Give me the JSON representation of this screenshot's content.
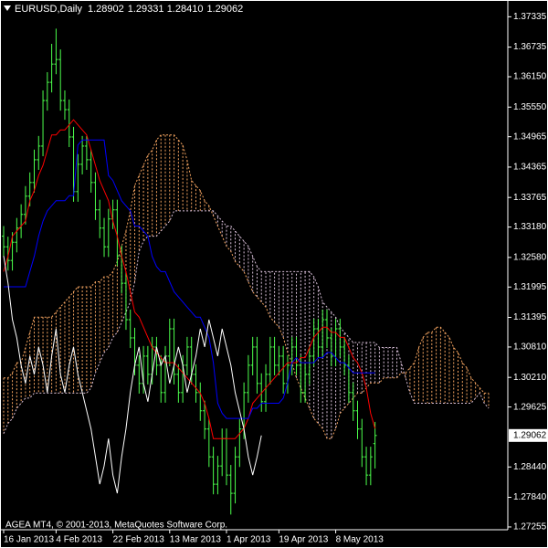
{
  "chart_data": {
    "type": "ohlc",
    "title": "EURUSD,Daily",
    "header_values": [
      "1.28902",
      "1.29331",
      "1.28410",
      "1.29062"
    ],
    "footer": "AGEA MT4, © 2001-2013, MetaQuotes Software Corp.",
    "color": "#4cff4c",
    "ylim": [
      1.272,
      1.3763
    ],
    "yticks": [
      1.37335,
      1.36735,
      {
        "value": 1.3615,
        "label": "1.36150"
      },
      {
        "value": 1.3555,
        "label": "1.35550"
      },
      1.34965,
      1.34365,
      1.33765,
      {
        "value": 1.3318,
        "label": "1.33180"
      },
      {
        "value": 1.3258,
        "label": "1.32580"
      },
      1.31995,
      1.31395,
      {
        "value": 1.3081,
        "label": "1.30810"
      },
      {
        "value": 1.3021,
        "label": "1.30210"
      },
      1.29625,
      {
        "value": 1.2844,
        "label": "1.28440"
      },
      {
        "value": 1.2784,
        "label": "1.27840"
      },
      1.27255
    ],
    "categories": [
      "16 Jan 2013",
      null,
      null,
      null,
      null,
      null,
      null,
      null,
      null,
      null,
      null,
      null,
      "4 Feb 2013",
      null,
      null,
      null,
      null,
      null,
      null,
      null,
      null,
      null,
      null,
      null,
      null,
      "22 Feb 2013",
      null,
      null,
      null,
      null,
      null,
      null,
      null,
      null,
      null,
      null,
      null,
      null,
      "13 Mar 2013",
      null,
      null,
      null,
      null,
      null,
      null,
      null,
      null,
      null,
      null,
      null,
      null,
      "1 Apr 2013",
      null,
      null,
      null,
      null,
      null,
      null,
      null,
      null,
      null,
      null,
      null,
      "19 Apr 2013",
      null,
      null,
      null,
      null,
      null,
      null,
      null,
      null,
      null,
      null,
      null,
      null,
      "8 May 2013",
      null,
      null,
      null,
      null,
      null,
      null,
      null,
      null,
      null,
      null,
      null,
      null,
      null,
      null,
      null,
      null,
      null,
      null,
      null,
      null,
      null,
      null,
      null,
      null,
      null,
      null,
      null,
      null,
      null,
      null,
      null,
      null,
      null,
      null,
      null
    ],
    "open": [
      1.33,
      1.3279,
      1.3252,
      1.3288,
      1.3316,
      1.3343,
      1.3379,
      1.3406,
      1.3451,
      1.3478,
      1.3568,
      1.3604,
      1.364,
      1.3649,
      1.3568,
      1.355,
      1.3496,
      1.3388,
      1.3442,
      1.3478,
      1.3451,
      1.3406,
      1.3352,
      1.3316,
      1.3279,
      1.3334,
      1.3352,
      1.3261,
      1.3207,
      1.3135,
      1.3099,
      1.3045,
      1.3009,
      1.3063,
      1.3027,
      1.3081,
      1.3045,
      1.2991,
      1.3063,
      1.3117,
      1.3027,
      1.2991,
      1.3045,
      1.3081,
      1.3027,
      1.2991,
      1.2955,
      1.2919,
      1.2864,
      1.281,
      1.2846,
      1.29,
      1.2828,
      1.2792,
      1.2864,
      1.2919,
      1.2991,
      1.3045,
      1.3081,
      1.3009,
      1.2973,
      1.3027,
      1.3081,
      1.3045,
      1.3063,
      1.3009,
      1.3045,
      1.3081,
      1.3045,
      1.2991,
      1.3027,
      1.3063,
      1.3117,
      1.3081,
      1.3135,
      1.3099,
      1.3063,
      1.3117,
      1.3081,
      1.3045,
      1.2991,
      1.2955,
      1.2919,
      1.2864,
      1.2828,
      1.28902,
      null,
      null,
      null,
      null,
      null,
      null,
      null,
      null,
      null,
      null,
      null,
      null,
      null,
      null,
      null,
      null,
      null,
      null,
      null,
      null,
      null,
      null,
      null,
      null,
      null,
      null
    ],
    "high": [
      1.332,
      1.3299,
      1.3308,
      1.3336,
      1.3363,
      1.3399,
      1.3426,
      1.3471,
      1.3498,
      1.3588,
      1.3624,
      1.368,
      1.371,
      1.3669,
      1.3588,
      1.357,
      1.3516,
      1.3462,
      1.3498,
      1.3498,
      1.3471,
      1.3426,
      1.3372,
      1.3336,
      1.3354,
      1.3372,
      1.3372,
      1.3281,
      1.3227,
      1.3155,
      1.3119,
      1.3065,
      1.3083,
      1.3083,
      1.3101,
      1.3101,
      1.3065,
      1.3083,
      1.3137,
      1.3137,
      1.3047,
      1.3065,
      1.3101,
      1.3101,
      1.3047,
      1.3011,
      1.2975,
      1.2939,
      1.2884,
      1.2866,
      1.292,
      1.292,
      1.2848,
      1.2884,
      1.2939,
      1.3011,
      1.3065,
      1.3101,
      1.3101,
      1.3029,
      1.3047,
      1.3101,
      1.3101,
      1.3083,
      1.3083,
      1.3065,
      1.3101,
      1.3101,
      1.3065,
      1.3047,
      1.3083,
      1.3137,
      1.3137,
      1.3155,
      1.3155,
      1.3119,
      1.3137,
      1.3137,
      1.3101,
      1.3065,
      1.3011,
      1.2975,
      1.2939,
      1.2884,
      1.2884,
      1.29331,
      null,
      null,
      null,
      null,
      null,
      null,
      null,
      null,
      null,
      null,
      null,
      null,
      null,
      null,
      null,
      null,
      null,
      null,
      null,
      null,
      null,
      null,
      null,
      null,
      null,
      null
    ],
    "low": [
      1.3259,
      1.3232,
      1.3232,
      1.3268,
      1.3296,
      1.3323,
      1.3359,
      1.3386,
      1.3431,
      1.3458,
      1.3548,
      1.3584,
      1.362,
      1.3548,
      1.353,
      1.3476,
      1.3368,
      1.3368,
      1.3422,
      1.3431,
      1.3386,
      1.3332,
      1.3296,
      1.3259,
      1.3259,
      1.3314,
      1.3241,
      1.3187,
      1.3115,
      1.3079,
      1.3025,
      1.2989,
      1.2989,
      1.3007,
      1.3007,
      1.3025,
      1.2971,
      1.2971,
      1.3043,
      1.3007,
      1.2971,
      1.2971,
      1.3025,
      1.3007,
      1.2971,
      1.2935,
      1.2899,
      1.2844,
      1.279,
      1.279,
      1.2826,
      1.2808,
      1.275,
      1.2772,
      1.2844,
      1.2899,
      1.2971,
      1.3025,
      1.2989,
      1.2953,
      1.2953,
      1.3007,
      1.3025,
      1.3025,
      1.2989,
      1.2989,
      1.3025,
      1.3025,
      1.2971,
      1.2971,
      1.3007,
      1.3043,
      1.3061,
      1.3061,
      1.3079,
      1.3043,
      1.3043,
      1.3061,
      1.3025,
      1.2971,
      1.2935,
      1.2899,
      1.2844,
      1.2808,
      1.2808,
      1.2841,
      null,
      null,
      null,
      null,
      null,
      null,
      null,
      null,
      null,
      null,
      null,
      null,
      null,
      null,
      null,
      null,
      null,
      null,
      null,
      null,
      null,
      null,
      null,
      null,
      null,
      null
    ],
    "close": [
      1.3279,
      1.3252,
      1.3288,
      1.3316,
      1.3343,
      1.3379,
      1.3406,
      1.3451,
      1.3478,
      1.3568,
      1.3604,
      1.364,
      1.3649,
      1.3568,
      1.355,
      1.3496,
      1.3388,
      1.3442,
      1.3478,
      1.3451,
      1.3406,
      1.3352,
      1.3316,
      1.3279,
      1.3334,
      1.3352,
      1.3261,
      1.3207,
      1.3135,
      1.3099,
      1.3045,
      1.3009,
      1.3063,
      1.3027,
      1.3081,
      1.3045,
      1.2991,
      1.3063,
      1.3117,
      1.3027,
      1.2991,
      1.3045,
      1.3081,
      1.3027,
      1.2991,
      1.2955,
      1.2919,
      1.2864,
      1.281,
      1.2846,
      1.29,
      1.2828,
      1.2792,
      1.2864,
      1.2919,
      1.2991,
      1.3045,
      1.3081,
      1.3009,
      1.2973,
      1.3027,
      1.3081,
      1.3045,
      1.3063,
      1.3009,
      1.3045,
      1.3081,
      1.3045,
      1.2991,
      1.3027,
      1.3063,
      1.3117,
      1.3081,
      1.3135,
      1.3099,
      1.3063,
      1.3117,
      1.3081,
      1.3045,
      1.2991,
      1.2955,
      1.2919,
      1.2864,
      1.2828,
      1.2864,
      1.29062,
      null,
      null,
      null,
      null,
      null,
      null,
      null,
      null,
      null,
      null,
      null,
      null,
      null,
      null,
      null,
      null,
      null,
      null,
      null,
      null,
      null,
      null,
      null,
      null,
      null,
      null
    ],
    "lagging_color": "#ffffff",
    "lines": [
      {
        "color": "#ff0000",
        "values": [
          1.323,
          1.326,
          1.33,
          1.331,
          1.332,
          1.333,
          1.337,
          1.339,
          1.342,
          1.344,
          1.347,
          1.35,
          1.35,
          1.351,
          1.351,
          1.352,
          1.353,
          1.352,
          1.351,
          1.35,
          1.347,
          1.344,
          1.341,
          1.339,
          1.337,
          1.333,
          1.33,
          1.326,
          1.323,
          1.319,
          1.315,
          1.314,
          1.312,
          1.31,
          1.308,
          1.307,
          1.306,
          1.305,
          1.305,
          1.305,
          1.304,
          1.303,
          1.302,
          1.301,
          1.3,
          1.299,
          1.297,
          1.294,
          1.29,
          1.29,
          1.29,
          1.29,
          1.29,
          1.29,
          1.291,
          1.292,
          1.294,
          1.297,
          1.298,
          1.299,
          1.3,
          1.301,
          1.302,
          1.303,
          1.304,
          1.305,
          1.305,
          1.305,
          1.306,
          1.306,
          1.308,
          1.31,
          1.311,
          1.312,
          1.312,
          1.311,
          1.311,
          1.31,
          1.31,
          1.308,
          1.306,
          1.305,
          1.303,
          1.3,
          1.295,
          1.292,
          null,
          null,
          null,
          null,
          null,
          null,
          null,
          null,
          null,
          null,
          null,
          null,
          null,
          null,
          null,
          null,
          null,
          null,
          null,
          null,
          null,
          null,
          null,
          null,
          null,
          null
        ]
      },
      {
        "color": "#0000ff",
        "values": [
          1.32,
          1.32,
          1.32,
          1.32,
          1.32,
          1.32,
          1.323,
          1.326,
          1.33,
          1.333,
          1.335,
          1.336,
          1.337,
          1.337,
          1.337,
          1.338,
          1.338,
          1.348,
          1.349,
          1.349,
          1.349,
          1.349,
          1.349,
          1.349,
          1.342,
          1.341,
          1.339,
          1.337,
          1.336,
          1.335,
          1.332,
          1.332,
          1.331,
          1.33,
          1.326,
          1.324,
          1.323,
          1.323,
          1.321,
          1.319,
          1.318,
          1.317,
          1.316,
          1.315,
          1.314,
          1.314,
          1.312,
          1.31,
          1.305,
          1.297,
          1.295,
          1.294,
          1.294,
          1.294,
          1.294,
          1.294,
          1.294,
          1.296,
          1.296,
          1.297,
          1.297,
          1.297,
          1.297,
          1.297,
          1.298,
          1.301,
          1.305,
          1.306,
          1.305,
          1.305,
          1.305,
          1.305,
          1.306,
          1.306,
          1.307,
          1.307,
          1.306,
          1.305,
          1.305,
          1.304,
          1.303,
          1.303,
          1.303,
          1.303,
          1.303,
          1.303,
          null,
          null,
          null,
          null,
          null,
          null,
          null,
          null,
          null,
          null,
          null,
          null,
          null,
          null,
          null,
          null,
          null,
          null,
          null,
          null,
          null,
          null,
          null,
          null,
          null,
          null
        ]
      }
    ],
    "cloud": {
      "colors": [
        "#f4a460",
        "#d8bfd8"
      ],
      "span_a": [
        1.302,
        1.302,
        1.303,
        1.305,
        1.305,
        1.308,
        1.311,
        1.314,
        1.314,
        1.314,
        1.314,
        1.314,
        1.315,
        1.316,
        1.317,
        1.318,
        1.319,
        1.32,
        1.32,
        1.32,
        1.32,
        1.321,
        1.321,
        1.322,
        1.322,
        1.323,
        1.325,
        1.328,
        1.331,
        1.335,
        1.34,
        1.342,
        1.344,
        1.346,
        1.347,
        1.349,
        1.35,
        1.35,
        1.35,
        1.35,
        1.349,
        1.348,
        1.345,
        1.341,
        1.34,
        1.339,
        1.337,
        1.336,
        1.334,
        1.332,
        1.33,
        1.328,
        1.327,
        1.325,
        1.324,
        1.323,
        1.321,
        1.319,
        1.318,
        1.317,
        1.316,
        1.314,
        1.313,
        1.312,
        1.31,
        1.307,
        1.305,
        1.302,
        1.3,
        1.298,
        1.296,
        1.294,
        1.293,
        1.292,
        1.29,
        1.29,
        1.292,
        1.295,
        1.296,
        1.297,
        1.298,
        1.299,
        1.299,
        1.3,
        1.301,
        1.301,
        1.301,
        1.302,
        1.302,
        1.302,
        1.302,
        1.303,
        1.303,
        1.304,
        1.305,
        1.308,
        1.31,
        1.311,
        1.311,
        1.312,
        1.312,
        1.311,
        1.31,
        1.308,
        1.307,
        1.305,
        1.304,
        1.302,
        1.301,
        1.3,
        1.299,
        1.299
      ],
      "span_b": [
        1.291,
        1.293,
        1.294,
        1.296,
        1.297,
        1.298,
        1.298,
        1.299,
        1.299,
        1.299,
        1.299,
        1.299,
        1.299,
        1.299,
        1.299,
        1.299,
        1.299,
        1.299,
        1.299,
        1.299,
        1.3,
        1.303,
        1.305,
        1.307,
        1.308,
        1.31,
        1.311,
        1.313,
        1.315,
        1.317,
        1.321,
        1.327,
        1.329,
        1.33,
        1.33,
        1.33,
        1.331,
        1.332,
        1.333,
        1.335,
        1.335,
        1.335,
        1.335,
        1.335,
        1.335,
        1.335,
        1.335,
        1.335,
        1.335,
        1.334,
        1.333,
        1.332,
        1.332,
        1.331,
        1.33,
        1.329,
        1.328,
        1.326,
        1.324,
        1.323,
        1.323,
        1.323,
        1.323,
        1.323,
        1.323,
        1.323,
        1.323,
        1.323,
        1.323,
        1.323,
        1.323,
        1.322,
        1.32,
        1.317,
        1.316,
        1.315,
        1.314,
        1.312,
        1.311,
        1.31,
        1.309,
        1.309,
        1.309,
        1.309,
        1.309,
        1.309,
        1.308,
        1.308,
        1.308,
        1.308,
        1.308,
        1.305,
        1.302,
        1.299,
        1.297,
        1.297,
        1.297,
        1.297,
        1.297,
        1.297,
        1.297,
        1.297,
        1.297,
        1.297,
        1.297,
        1.297,
        1.297,
        1.297,
        1.298,
        1.299,
        1.297,
        1.296
      ]
    }
  }
}
